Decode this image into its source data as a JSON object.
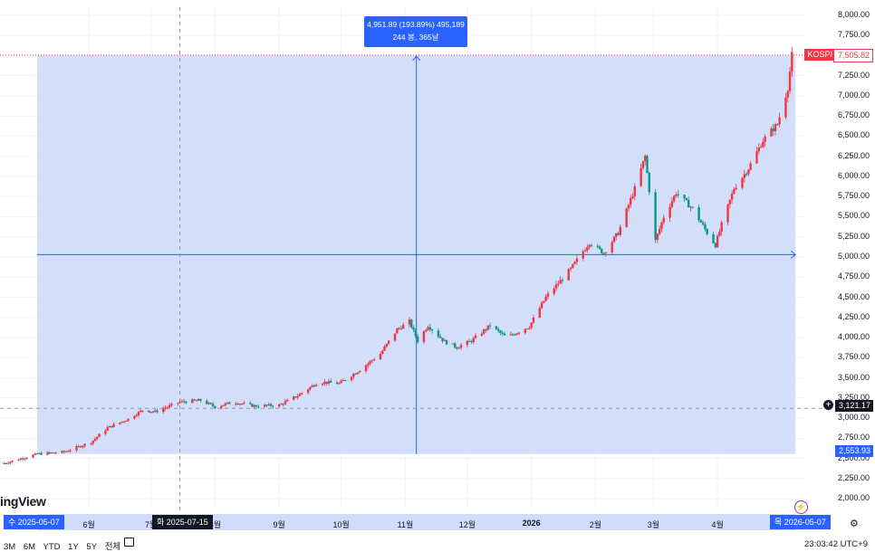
{
  "chart_data": {
    "type": "candlestick",
    "symbol": "KOSPI",
    "y_ticks": [
      2000,
      2250,
      2500,
      2750,
      3000,
      3250,
      3500,
      3750,
      4000,
      4250,
      4500,
      4750,
      5000,
      5250,
      5500,
      5750,
      6000,
      6250,
      6500,
      6750,
      7000,
      7250,
      7500,
      7750,
      8000
    ],
    "y_tick_labels": [
      "2,000.00",
      "2,250.00",
      "2,500.00",
      "2,750.00",
      "3,000.00",
      "3,250.00",
      "3,500.00",
      "3,750.00",
      "4,000.00",
      "4,250.00",
      "4,500.00",
      "4,750.00",
      "5,000.00",
      "5,250.00",
      "5,500.00",
      "5,750.00",
      "6,000.00",
      "6,250.00",
      "6,500.00",
      "6,750.00",
      "7,000.00",
      "7,250.00",
      "7,500.00",
      "7,750.00",
      "8,000.00"
    ],
    "ylim": [
      1900,
      8100
    ],
    "x_ticks": [
      {
        "date": "2025-06-01",
        "label": "6월",
        "bold": false
      },
      {
        "date": "2025-07-01",
        "label": "7월",
        "bold": false
      },
      {
        "date": "2025-08-01",
        "label": "8월",
        "bold": false
      },
      {
        "date": "2025-09-01",
        "label": "9월",
        "bold": false
      },
      {
        "date": "2025-10-01",
        "label": "10월",
        "bold": false
      },
      {
        "date": "2025-11-01",
        "label": "11월",
        "bold": false
      },
      {
        "date": "2025-12-01",
        "label": "12월",
        "bold": false
      },
      {
        "date": "2026-01-01",
        "label": "2026",
        "bold": true
      },
      {
        "date": "2026-02-01",
        "label": "2월",
        "bold": false
      },
      {
        "date": "2026-03-01",
        "label": "3월",
        "bold": false
      },
      {
        "date": "2026-04-01",
        "label": "4월",
        "bold": false
      }
    ],
    "xlim": [
      "2025-04-19",
      "2026-05-13"
    ],
    "path": [
      [
        "2025-04-21",
        2440
      ],
      [
        "2025-05-07",
        2554
      ],
      [
        "2025-05-20",
        2580
      ],
      [
        "2025-06-02",
        2700
      ],
      [
        "2025-06-10",
        2880
      ],
      [
        "2025-06-20",
        2990
      ],
      [
        "2025-06-27",
        3100
      ],
      [
        "2025-07-03",
        3080
      ],
      [
        "2025-07-10",
        3150
      ],
      [
        "2025-07-15",
        3200
      ],
      [
        "2025-07-25",
        3220
      ],
      [
        "2025-08-01",
        3140
      ],
      [
        "2025-08-10",
        3200
      ],
      [
        "2025-08-20",
        3150
      ],
      [
        "2025-09-01",
        3160
      ],
      [
        "2025-09-10",
        3280
      ],
      [
        "2025-09-20",
        3450
      ],
      [
        "2025-09-30",
        3430
      ],
      [
        "2025-10-10",
        3600
      ],
      [
        "2025-10-20",
        3800
      ],
      [
        "2025-10-28",
        4100
      ],
      [
        "2025-11-03",
        4200
      ],
      [
        "2025-11-07",
        3960
      ],
      [
        "2025-11-12",
        4150
      ],
      [
        "2025-11-20",
        3950
      ],
      [
        "2025-11-26",
        3880
      ],
      [
        "2025-12-03",
        3960
      ],
      [
        "2025-12-12",
        4150
      ],
      [
        "2025-12-20",
        4000
      ],
      [
        "2025-12-31",
        4140
      ],
      [
        "2026-01-08",
        4500
      ],
      [
        "2026-01-20",
        4850
      ],
      [
        "2026-01-29",
        5180
      ],
      [
        "2026-02-05",
        5050
      ],
      [
        "2026-02-12",
        5300
      ],
      [
        "2026-02-20",
        5850
      ],
      [
        "2026-02-25",
        6250
      ],
      [
        "2026-03-02",
        5200
      ],
      [
        "2026-03-06",
        5500
      ],
      [
        "2026-03-12",
        5800
      ],
      [
        "2026-03-20",
        5600
      ],
      [
        "2026-03-27",
        5300
      ],
      [
        "2026-03-31",
        5150
      ],
      [
        "2026-04-03",
        5400
      ],
      [
        "2026-04-09",
        5850
      ],
      [
        "2026-04-16",
        6100
      ],
      [
        "2026-04-23",
        6450
      ],
      [
        "2026-04-30",
        6650
      ],
      [
        "2026-05-05",
        7100
      ],
      [
        "2026-05-07",
        7506
      ]
    ],
    "measurement": {
      "start_date": "2025-05-07",
      "end_date": "2026-05-07",
      "start_value": 2553.93,
      "end_value": 7505.82,
      "line": "4,951.89 (193.89%) 495,189",
      "line2": "244 봉, 365날"
    },
    "crosshair": {
      "date": "2025-07-15",
      "value": 3121.17
    },
    "last_price_label": "7,505.82",
    "crosshair_price_label": "3,121.17",
    "start_price_label": "2,553.93",
    "start_date_label": "수 2025-05-07",
    "crosshair_date_label": "화 2025-07-15",
    "end_date_label": "목 2026-05-07",
    "colors": {
      "up": "#f23645",
      "down": "#089981",
      "measure": "#2962ff",
      "measure_fill": "#d1dcfb",
      "symbol_tag": "#f23645"
    }
  },
  "ui": {
    "brand": "ingView",
    "ranges": [
      "3M",
      "6M",
      "YTD",
      "1Y",
      "5Y",
      "전체"
    ],
    "time": "23:03:42 UTC+9",
    "settings_icon": "gear-icon",
    "calendar_icon": "calendar-icon",
    "flash_icon": "lightning-icon"
  }
}
